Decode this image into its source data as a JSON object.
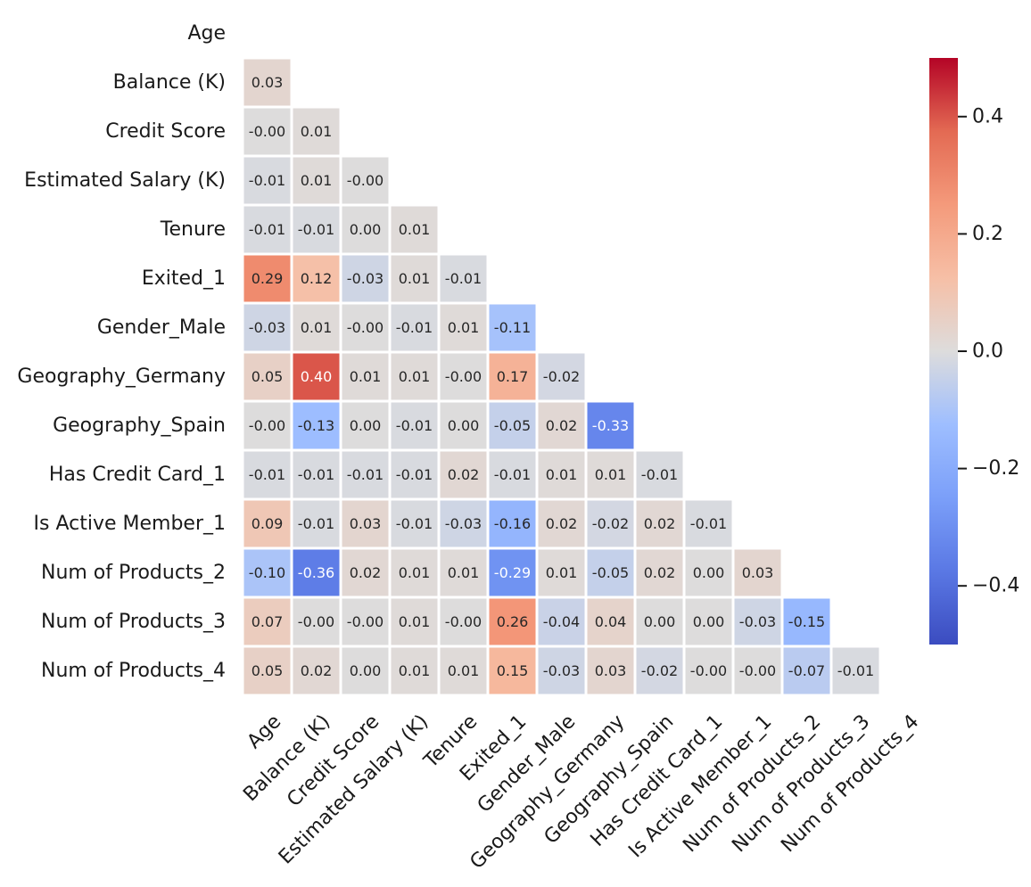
{
  "chart_data": {
    "type": "heatmap",
    "title": "",
    "xlabel": "",
    "ylabel": "",
    "labels": [
      "Age",
      "Balance (K)",
      "Credit Score",
      "Estimated Salary (K)",
      "Tenure",
      "Exited_1",
      "Gender_Male",
      "Geography_Germany",
      "Geography_Spain",
      "Has Credit Card_1",
      "Is Active Member_1",
      "Num of Products_2",
      "Num of Products_3",
      "Num of Products_4"
    ],
    "mask": "lower-triangle",
    "colormap": "coolwarm",
    "vmin": -0.5,
    "vmax": 0.5,
    "colorbar": {
      "ticks": [
        0.4,
        0.2,
        0.0,
        -0.2,
        -0.4
      ],
      "tick_labels": [
        "0.4",
        "0.2",
        "0.0",
        "−0.2",
        "−0.4"
      ],
      "placement": "right"
    },
    "values": [
      [],
      [
        0.03
      ],
      [
        -0.0,
        0.01
      ],
      [
        -0.01,
        0.01,
        -0.0
      ],
      [
        -0.01,
        -0.01,
        0.0,
        0.01
      ],
      [
        0.29,
        0.12,
        -0.03,
        0.01,
        -0.01
      ],
      [
        -0.03,
        0.01,
        -0.0,
        -0.01,
        0.01,
        -0.11
      ],
      [
        0.05,
        0.4,
        0.01,
        0.01,
        -0.0,
        0.17,
        -0.02
      ],
      [
        -0.0,
        -0.13,
        0.0,
        -0.01,
        0.0,
        -0.05,
        0.02,
        -0.33
      ],
      [
        -0.01,
        -0.01,
        -0.01,
        -0.01,
        0.02,
        -0.01,
        0.01,
        0.01,
        -0.01
      ],
      [
        0.09,
        -0.01,
        0.03,
        -0.01,
        -0.03,
        -0.16,
        0.02,
        -0.02,
        0.02,
        -0.01
      ],
      [
        -0.1,
        -0.36,
        0.02,
        0.01,
        0.01,
        -0.29,
        0.01,
        -0.05,
        0.02,
        0.0,
        0.03
      ],
      [
        0.07,
        -0.0,
        -0.0,
        0.01,
        -0.0,
        0.26,
        -0.04,
        0.04,
        0.0,
        0.0,
        -0.03,
        -0.15
      ],
      [
        0.05,
        0.02,
        0.0,
        0.01,
        0.01,
        0.15,
        -0.03,
        0.03,
        -0.02,
        -0.0,
        -0.0,
        -0.07,
        -0.01
      ]
    ],
    "annotations": [
      [],
      [
        "0.03"
      ],
      [
        "-0.00",
        "0.01"
      ],
      [
        "-0.01",
        "0.01",
        "-0.00"
      ],
      [
        "-0.01",
        "-0.01",
        "0.00",
        "0.01"
      ],
      [
        "0.29",
        "0.12",
        "-0.03",
        "0.01",
        "-0.01"
      ],
      [
        "-0.03",
        "0.01",
        "-0.00",
        "-0.01",
        "0.01",
        "-0.11"
      ],
      [
        "0.05",
        "0.40",
        "0.01",
        "0.01",
        "-0.00",
        "0.17",
        "-0.02"
      ],
      [
        "-0.00",
        "-0.13",
        "0.00",
        "-0.01",
        "0.00",
        "-0.05",
        "0.02",
        "-0.33"
      ],
      [
        "-0.01",
        "-0.01",
        "-0.01",
        "-0.01",
        "0.02",
        "-0.01",
        "0.01",
        "0.01",
        "-0.01"
      ],
      [
        "0.09",
        "-0.01",
        "0.03",
        "-0.01",
        "-0.03",
        "-0.16",
        "0.02",
        "-0.02",
        "0.02",
        "-0.01"
      ],
      [
        "-0.10",
        "-0.36",
        "0.02",
        "0.01",
        "0.01",
        "-0.29",
        "0.01",
        "-0.05",
        "0.02",
        "0.00",
        "0.03"
      ],
      [
        "0.07",
        "-0.00",
        "-0.00",
        "0.01",
        "-0.00",
        "0.26",
        "-0.04",
        "0.04",
        "0.00",
        "0.00",
        "-0.03",
        "-0.15"
      ],
      [
        "0.05",
        "0.02",
        "0.00",
        "0.01",
        "0.01",
        "0.15",
        "-0.03",
        "0.03",
        "-0.02",
        "-0.00",
        "-0.00",
        "-0.07",
        "-0.01"
      ]
    ]
  }
}
